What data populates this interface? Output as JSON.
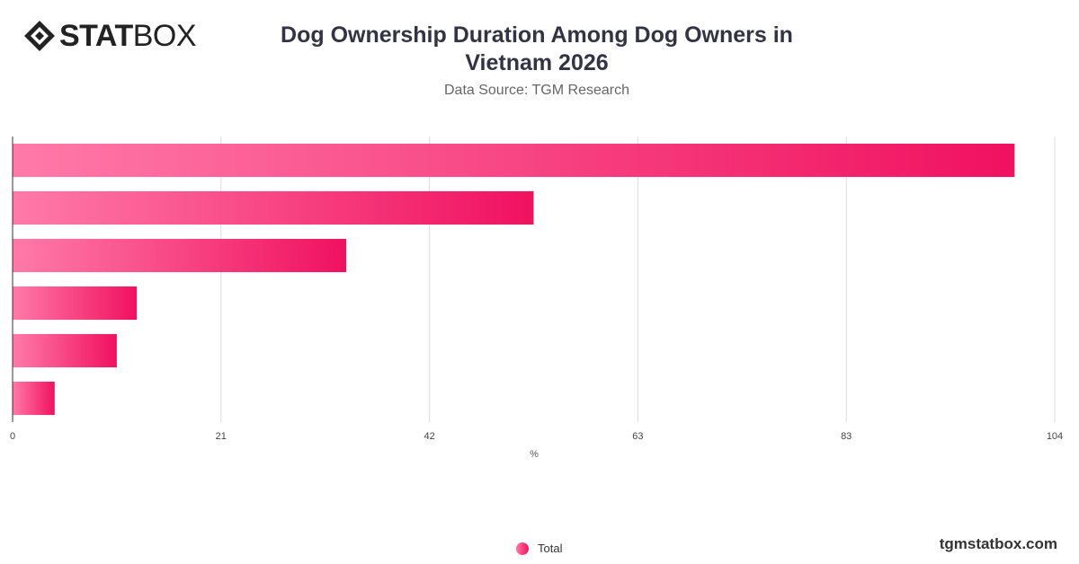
{
  "brand": {
    "bold": "STAT",
    "regular": "BOX"
  },
  "header": {
    "title_line1": "Dog Ownership Duration Among Dog Owners in",
    "title_line2": "Vietnam 2026",
    "subtitle": "Data Source: TGM Research"
  },
  "footer": {
    "site": "tgmstatbox.com"
  },
  "colors": {
    "bar_start": "#ff7aa8",
    "bar_end": "#f0115f",
    "grid": "#dddddd",
    "axis": "#333333"
  },
  "chart_data": {
    "type": "bar",
    "orientation": "horizontal",
    "categories": [
      "",
      "",
      "",
      "",
      "",
      ""
    ],
    "series": [
      {
        "name": "Total",
        "values": [
          100,
          52,
          33.3,
          12.4,
          10.4,
          4.2
        ]
      }
    ],
    "xlabel": "%",
    "xlim": [
      0,
      104
    ],
    "x_ticks": [
      "0",
      "21",
      "42",
      "63",
      "83",
      "104"
    ],
    "grid": true,
    "legend": "bottom-center"
  }
}
